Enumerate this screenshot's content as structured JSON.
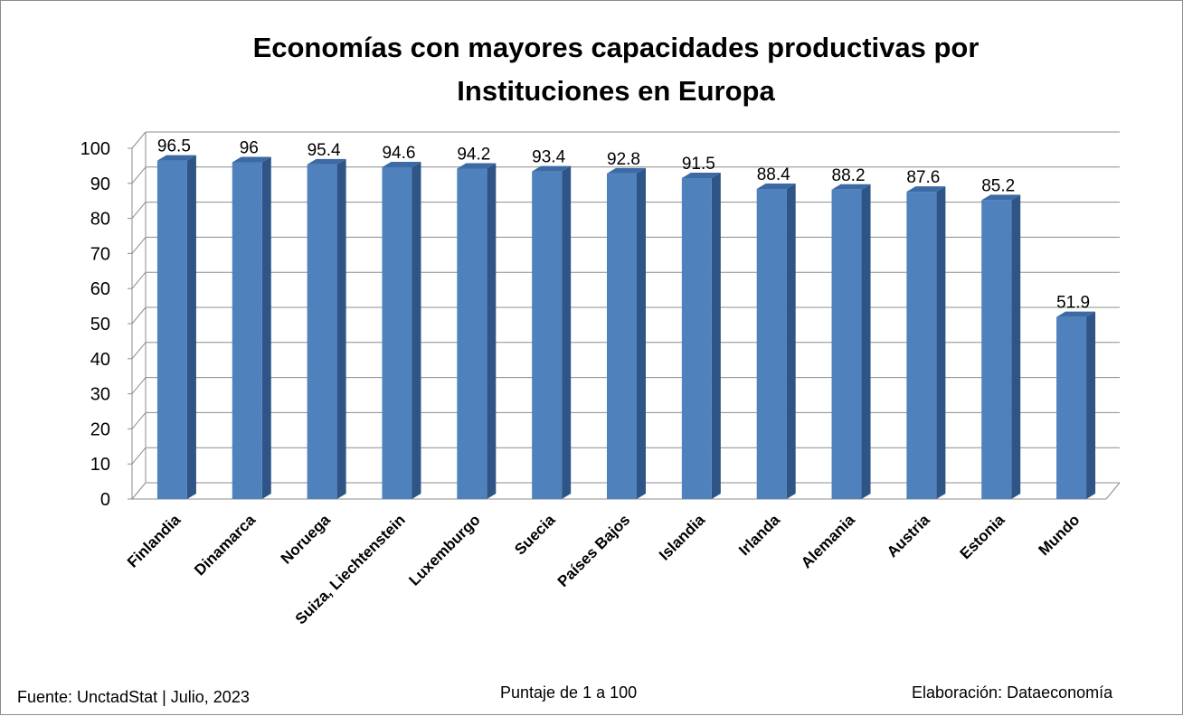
{
  "title": {
    "line1": "Economías con mayores capacidades productivas por",
    "line2": "Instituciones en Europa"
  },
  "chart_data": {
    "type": "bar",
    "title": "Economías con mayores capacidades productivas por Instituciones en Europa",
    "categories": [
      "Finlandia",
      "Dinamarca",
      "Noruega",
      "Suiza, Liechtenstein",
      "Luxemburgo",
      "Suecia",
      "Países Bajos",
      "Islandia",
      "Irlanda",
      "Alemania",
      "Austria",
      "Estonia",
      "Mundo"
    ],
    "values": [
      96.5,
      96,
      95.4,
      94.6,
      94.2,
      93.4,
      92.8,
      91.5,
      88.4,
      88.2,
      87.6,
      85.2,
      51.9
    ],
    "value_labels": [
      "96.5",
      "96",
      "95.4",
      "94.6",
      "94.2",
      "93.4",
      "92.8",
      "91.5",
      "88.4",
      "88.2",
      "87.6",
      "85.2",
      "51.9"
    ],
    "ylim": [
      0,
      100
    ],
    "yticks": [
      "0",
      "10",
      "20",
      "30",
      "40",
      "50",
      "60",
      "70",
      "80",
      "90",
      "100"
    ],
    "grid": true,
    "style": "3d-column",
    "colors": {
      "bar_front": "#4f81bd",
      "bar_side": "#2f5486",
      "bar_top": "#3c6aa5",
      "grid": "#8c8c8c"
    }
  },
  "footer": {
    "source": "Fuente: UnctadStat | Julio,  2023",
    "note": "Puntaje de 1 a 100",
    "credit": "Elaboración: Dataeconomía"
  }
}
